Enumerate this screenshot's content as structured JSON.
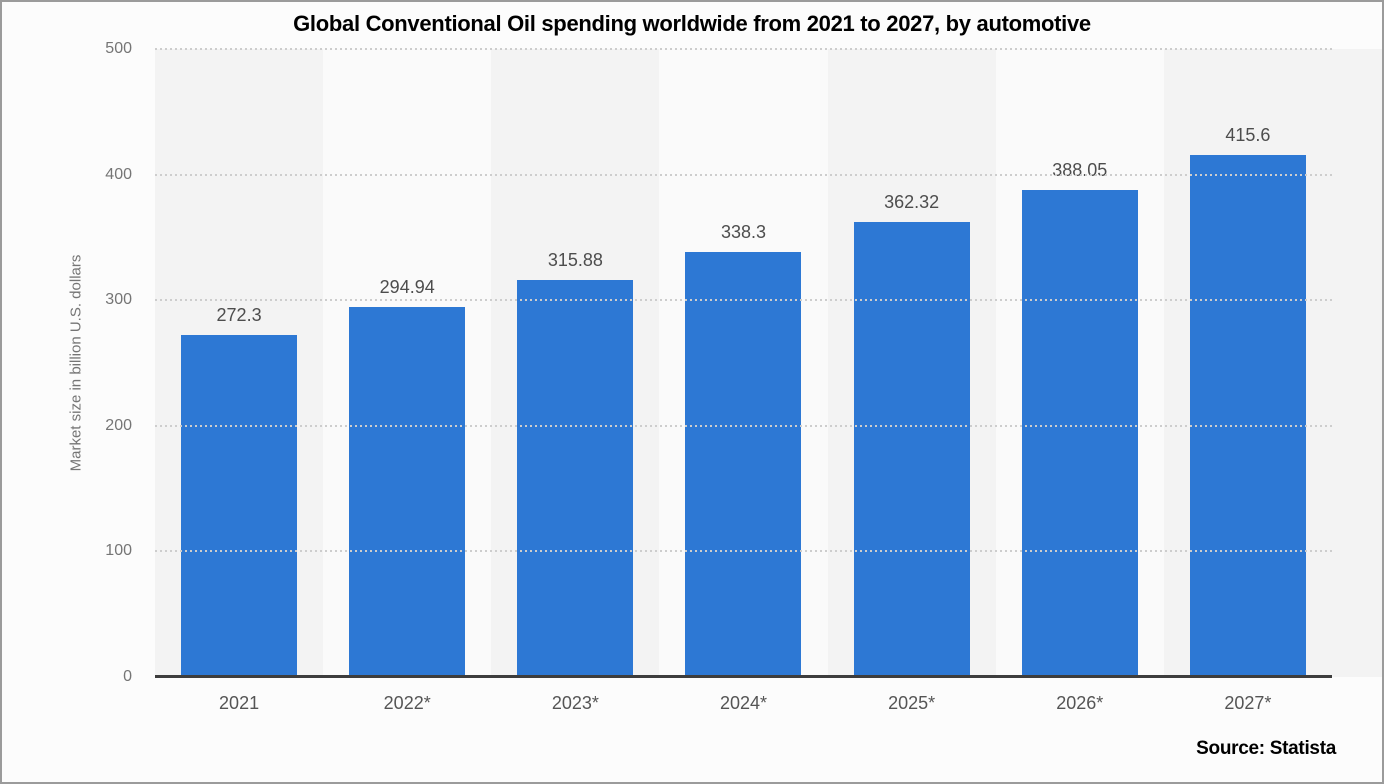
{
  "chart_data": {
    "type": "bar",
    "title": "Global Conventional Oil spending worldwide from 2021 to 2027, by automotive",
    "categories": [
      "2021",
      "2022*",
      "2023*",
      "2024*",
      "2025*",
      "2026*",
      "2027*"
    ],
    "values": [
      272.3,
      294.94,
      315.88,
      338.3,
      362.32,
      388.05,
      415.6
    ],
    "value_labels": [
      "272.3",
      "294.94",
      "315.88",
      "338.3",
      "362.32",
      "388.05",
      "415.6"
    ],
    "xlabel": "",
    "ylabel": "Market size in billion U.S. dollars",
    "ylim": [
      0,
      500
    ],
    "yticks": [
      0,
      100,
      200,
      300,
      400,
      500
    ],
    "grid": "horizontal dotted",
    "legend": "none",
    "bar_color": "#2d78d4",
    "band_colors": [
      "#f3f3f3",
      "#fafafa"
    ],
    "axis_line_color": "#3d3d3d",
    "source": "Source: Statista"
  }
}
